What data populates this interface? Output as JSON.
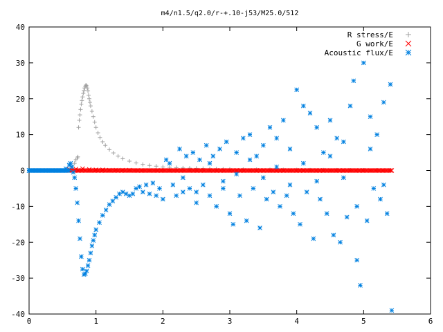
{
  "chart_data": {
    "type": "scatter",
    "title": "m4/n1.5/q2.0/r-+.10-j53/M25.0/512",
    "xlabel": "",
    "ylabel": "",
    "xlim": [
      0,
      6
    ],
    "ylim": [
      -40,
      40
    ],
    "xticks": [
      "0",
      "1",
      "2",
      "3",
      "4",
      "5",
      "6"
    ],
    "yticks": [
      "-40",
      "-30",
      "-20",
      "-10",
      "0",
      "10",
      "20",
      "30",
      "40"
    ],
    "grid": false,
    "legend_position": "top-right",
    "series": [
      {
        "name": "R stress/E",
        "marker": "plus",
        "color": "#a0a0a0",
        "x": [
          0.55,
          0.6,
          0.65,
          0.68,
          0.7,
          0.72,
          0.73,
          0.74,
          0.75,
          0.76,
          0.77,
          0.78,
          0.79,
          0.8,
          0.81,
          0.82,
          0.83,
          0.84,
          0.85,
          0.86,
          0.87,
          0.88,
          0.89,
          0.9,
          0.91,
          0.92,
          0.94,
          0.96,
          0.98,
          1.0,
          1.03,
          1.06,
          1.1,
          1.14,
          1.2,
          1.26,
          1.33,
          1.4,
          1.5,
          1.6,
          1.7,
          1.8,
          1.9,
          2.0,
          2.1,
          2.2,
          2.3,
          2.4,
          2.5,
          2.6,
          2.7,
          2.8,
          2.9,
          3.0,
          3.2,
          3.4,
          3.6,
          3.8,
          4.0,
          4.2,
          4.4,
          4.6,
          4.8,
          5.0,
          5.2,
          5.4
        ],
        "y": [
          0.2,
          0.5,
          1.0,
          2.0,
          3.0,
          3.5,
          3.8,
          12,
          14,
          15.5,
          17,
          18.5,
          19.5,
          20.5,
          21.5,
          22.3,
          23,
          23.5,
          23.8,
          23.6,
          23.0,
          22.2,
          21.0,
          20.0,
          19.0,
          18.0,
          16.5,
          15.0,
          13.5,
          12.0,
          10.5,
          9.2,
          8.0,
          7.0,
          5.8,
          4.9,
          4.0,
          3.3,
          2.6,
          2.1,
          1.7,
          1.4,
          1.2,
          1.0,
          0.9,
          0.8,
          0.7,
          0.65,
          0.6,
          0.55,
          0.5,
          0.45,
          0.4,
          0.35,
          0.3,
          0.25,
          0.22,
          0.2,
          0.18,
          0.15,
          0.13,
          0.12,
          0.1,
          0.1,
          0.08,
          0.08
        ]
      },
      {
        "name": "G work/E",
        "marker": "cross",
        "color": "#ff0000",
        "x": [
          0.6,
          0.7,
          0.8,
          0.9,
          1.0,
          1.1,
          1.2,
          1.3,
          1.4,
          1.5,
          1.6,
          1.7,
          1.8,
          1.9,
          2.0,
          2.1,
          2.2,
          2.3,
          2.4,
          2.5,
          2.6,
          2.7,
          2.8,
          2.9,
          3.0,
          3.1,
          3.2,
          3.3,
          3.4,
          3.5,
          3.6,
          3.7,
          3.8,
          3.9,
          4.0,
          4.1,
          4.2,
          4.3,
          4.4,
          4.5,
          4.6,
          4.7,
          4.8,
          4.9,
          5.0,
          5.1,
          5.2,
          5.3,
          5.4
        ],
        "y": [
          0.3,
          0.4,
          0.5,
          0.3,
          0.2,
          0.2,
          0.1,
          0.1,
          0.1,
          0.1,
          0,
          0,
          0,
          0,
          0,
          0,
          0,
          0,
          0,
          0,
          0,
          0,
          0,
          0,
          0,
          0,
          0,
          0,
          0,
          0,
          0,
          0,
          0,
          0,
          0,
          0,
          0,
          0,
          0,
          0,
          0,
          0,
          0,
          0,
          0,
          0,
          0,
          0,
          0
        ]
      },
      {
        "name": "Acoustic flux/E",
        "marker": "star",
        "color": "#0080e0",
        "x": [
          0.0,
          0.1,
          0.2,
          0.3,
          0.4,
          0.5,
          0.55,
          0.6,
          0.62,
          0.64,
          0.66,
          0.68,
          0.7,
          0.72,
          0.74,
          0.76,
          0.78,
          0.8,
          0.82,
          0.84,
          0.86,
          0.88,
          0.9,
          0.92,
          0.94,
          0.96,
          0.98,
          1.0,
          1.05,
          1.1,
          1.15,
          1.2,
          1.25,
          1.3,
          1.35,
          1.4,
          1.45,
          1.5,
          1.55,
          1.6,
          1.65,
          1.7,
          1.75,
          1.8,
          1.85,
          1.9,
          1.95,
          2.0,
          2.05,
          2.1,
          2.15,
          2.2,
          2.25,
          2.3,
          2.35,
          2.4,
          2.45,
          2.5,
          2.55,
          2.6,
          2.65,
          2.7,
          2.75,
          2.8,
          2.85,
          2.9,
          2.95,
          3.0,
          3.05,
          3.1,
          3.15,
          3.2,
          3.25,
          3.3,
          3.35,
          3.4,
          3.45,
          3.5,
          3.55,
          3.6,
          3.65,
          3.7,
          3.75,
          3.8,
          3.85,
          3.9,
          3.95,
          4.0,
          4.05,
          4.1,
          4.15,
          4.2,
          4.25,
          4.3,
          4.35,
          4.4,
          4.45,
          4.5,
          4.55,
          4.6,
          4.65,
          4.7,
          4.75,
          4.8,
          4.85,
          4.9,
          4.95,
          5.0,
          5.05,
          5.1,
          5.15,
          5.2,
          5.25,
          5.3,
          5.35,
          5.4
        ],
        "y": [
          0,
          0,
          0,
          0,
          0,
          0,
          0.5,
          1.5,
          2.0,
          1.0,
          -0.5,
          -2.0,
          -5.0,
          -9.0,
          -14.0,
          -19.0,
          -24.0,
          -27.5,
          -29.0,
          -28.8,
          -28.0,
          -26.5,
          -25.0,
          -23.0,
          -21.0,
          -19.5,
          -18.0,
          -16.5,
          -14.5,
          -12.5,
          -11.0,
          -9.5,
          -8.5,
          -7.5,
          -6.5,
          -6.0,
          -6.5,
          -7.0,
          -6.5,
          -5.0,
          -4.5,
          -6.0,
          -4.0,
          -6.5,
          -3.5,
          -7.0,
          -5.0,
          -8.0,
          3.0,
          2.0,
          -4.0,
          -7.0,
          6.0,
          -6.0,
          4.0,
          -5.0,
          5.0,
          -9.0,
          3.0,
          -4.0,
          7.0,
          -7.0,
          4.0,
          -10.0,
          6.0,
          -5.0,
          8.0,
          -12.0,
          -15.0,
          5.0,
          -7.0,
          9.0,
          -14.0,
          10.0,
          -5.0,
          4.0,
          -16.0,
          7.0,
          -8.0,
          12.0,
          -6.0,
          9.0,
          -10.0,
          14.0,
          -7.0,
          6.0,
          -12.0,
          22.5,
          -15.0,
          18.0,
          -6.0,
          16.0,
          -19.0,
          12.0,
          -8.0,
          5.0,
          -12.0,
          14.0,
          -18.0,
          9.0,
          -20.0,
          8.0,
          -13.0,
          18.0,
          25.0,
          -25.0,
          -32.0,
          30.0,
          -14.0,
          15.0,
          -5.0,
          10.0,
          -8.0,
          19.0,
          -12.0,
          24.0
        ],
        "x2": [
          2.3,
          2.5,
          2.7,
          2.9,
          3.1,
          3.3,
          3.5,
          3.7,
          3.9,
          4.1,
          4.3,
          4.5,
          4.7,
          4.9,
          5.1,
          5.3,
          5.42
        ],
        "y2": [
          -2.0,
          -6.0,
          2.0,
          -3.0,
          -1.0,
          3.0,
          -2.0,
          1.0,
          -4.0,
          2.0,
          -3.0,
          4.0,
          -2.0,
          -10.0,
          6.0,
          -4.0,
          -39.0
        ]
      }
    ]
  }
}
